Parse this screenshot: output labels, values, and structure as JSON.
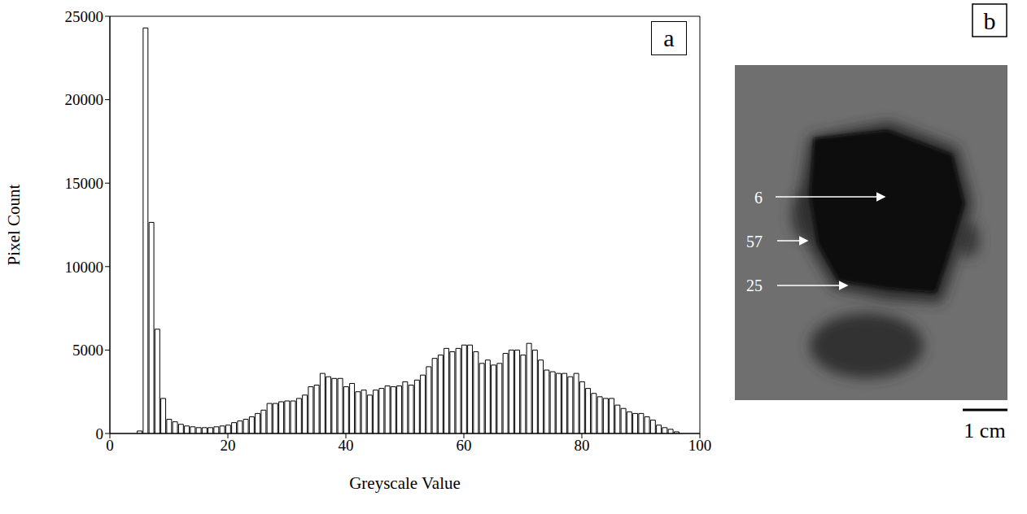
{
  "chart_data": {
    "type": "histogram",
    "panel_label": "a",
    "x_label": "Greyscale Value",
    "y_label": "Pixel Count",
    "bins": [
      4.5,
      5.5,
      6.5,
      7.5,
      8.5,
      9.5,
      10.5,
      11.5,
      12.5,
      13.5,
      14.5,
      15.5,
      16.5,
      17.5,
      18.5,
      19.5,
      20.5,
      21.5,
      22.5,
      23.5,
      24.5,
      25.5,
      26.5,
      27.5,
      28.5,
      29.5,
      30.5,
      31.5,
      32.5,
      33.5,
      34.5,
      35.5,
      36.5,
      37.5,
      38.5,
      39.5,
      40.5,
      41.5,
      42.5,
      43.5,
      44.5,
      45.5,
      46.5,
      47.5,
      48.5,
      49.5,
      50.5,
      51.5,
      52.5,
      53.5,
      54.5,
      55.5,
      56.5,
      57.5,
      58.5,
      59.5,
      60.5,
      61.5,
      62.5,
      63.5,
      64.5,
      65.5,
      66.5,
      67.5,
      68.5,
      69.5,
      70.5,
      71.5,
      72.5,
      73.5,
      74.5,
      75.5,
      76.5,
      77.5,
      78.5,
      79.5,
      80.5,
      81.5,
      82.5,
      83.5,
      84.5,
      85.5,
      86.5,
      87.5,
      88.5,
      89.5,
      90.5,
      91.5,
      92.5,
      93.5,
      94.5,
      95.5,
      96.5
    ],
    "values": [
      150,
      24300,
      12650,
      6250,
      2100,
      850,
      700,
      550,
      450,
      400,
      350,
      350,
      350,
      400,
      450,
      500,
      650,
      750,
      850,
      1000,
      1200,
      1400,
      1800,
      1800,
      1900,
      1950,
      1950,
      2100,
      2300,
      2800,
      2900,
      3600,
      3400,
      3300,
      3300,
      2800,
      3000,
      2500,
      2600,
      2300,
      2600,
      2700,
      2850,
      2800,
      2850,
      3100,
      2900,
      3200,
      3500,
      4000,
      4500,
      4700,
      5100,
      4900,
      5100,
      5300,
      5300,
      4900,
      4200,
      4400,
      4100,
      4200,
      4800,
      5000,
      5000,
      4700,
      5400,
      5000,
      4400,
      3800,
      3700,
      3600,
      3600,
      3400,
      3600,
      3100,
      2700,
      2400,
      2200,
      2100,
      2100,
      1700,
      1500,
      1300,
      1200,
      1200,
      1000,
      800,
      500,
      350,
      250,
      100
    ],
    "color": "#ffffff",
    "xlim": [
      0,
      100
    ],
    "xticks": [
      0,
      20,
      40,
      60,
      80,
      100
    ],
    "ylim": [
      0,
      25000
    ],
    "yticks": [
      0,
      5000,
      10000,
      15000,
      20000,
      25000
    ],
    "grid": false
  },
  "image": {
    "panel_label": "b",
    "annotations": [
      6,
      57,
      25
    ],
    "scale_bar": "1 cm"
  }
}
